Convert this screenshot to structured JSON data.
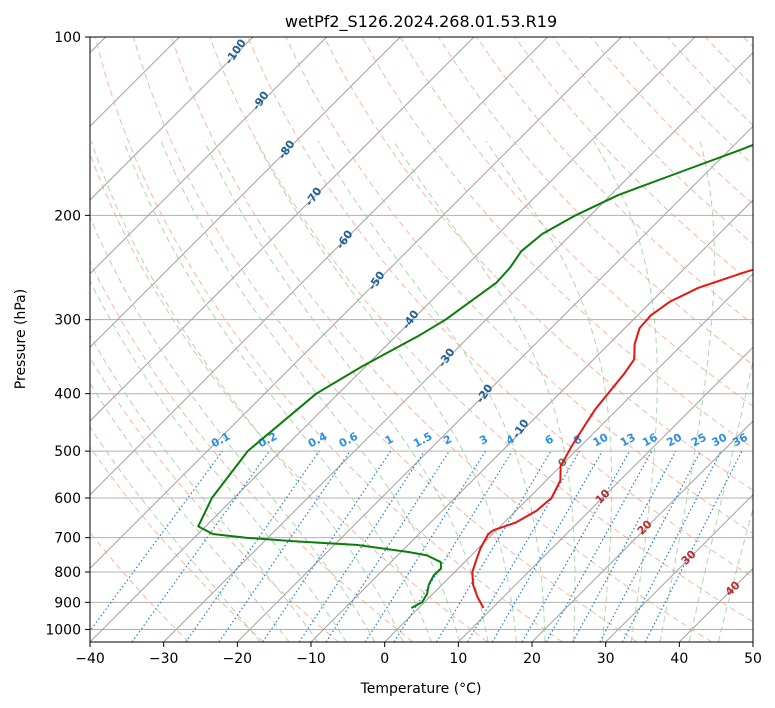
{
  "chart_data": {
    "type": "line",
    "title": "wetPf2_S126.2024.268.01.53.R19",
    "xlabel": "Temperature (°C)",
    "ylabel": "Pressure (hPa)",
    "xlim": [
      -40,
      50
    ],
    "ylim": [
      1050,
      100
    ],
    "y_scale": "log",
    "x_ticks": [
      -40,
      -30,
      -20,
      -10,
      0,
      10,
      20,
      30,
      40,
      50
    ],
    "x_tick_labels": [
      "−40",
      "−30",
      "−20",
      "−10",
      "0",
      "10",
      "20",
      "30",
      "40",
      "50"
    ],
    "y_ticks": [
      100,
      200,
      300,
      400,
      500,
      600,
      700,
      800,
      900,
      1000
    ],
    "y_tick_labels": [
      "100",
      "200",
      "300",
      "400",
      "500",
      "600",
      "700",
      "800",
      "900",
      "1000"
    ],
    "grid": true,
    "isotherm_skew": 1.0,
    "dry_adiabat_labels": [
      "-100",
      "-90",
      "-80",
      "-70",
      "-60",
      "-50",
      "-40",
      "-30",
      "-20",
      "-10"
    ],
    "moist_adiabat_labels": [
      "0",
      "10",
      "20",
      "30",
      "40"
    ],
    "mixing_ratio_labels": [
      "0.1",
      "0.2",
      "0.4",
      "0.6",
      "1",
      "1.5",
      "2",
      "3",
      "4",
      "6",
      "8",
      "10",
      "13",
      "16",
      "20",
      "25",
      "30",
      "36"
    ],
    "colors": {
      "temperature": "#e8150f",
      "dewpoint": "#0a7d0a",
      "isotherm": "#a0a0a0",
      "isobar": "#b0b0b0",
      "dry_adiabat": "#f5a080",
      "moist_adiabat": "#98cc98",
      "mixing_ratio": "#1e7ed8",
      "dry_label": "#1f5f99",
      "moist_label": "#c0282a",
      "mixing_label": "#2d8ee6",
      "zero_label": "#707070"
    },
    "series": [
      {
        "name": "Temperature",
        "key": "temperature",
        "points": [
          {
            "p": 920,
            "t": 8.8
          },
          {
            "p": 880,
            "t": 6.4
          },
          {
            "p": 840,
            "t": 4.2
          },
          {
            "p": 800,
            "t": 2.4
          },
          {
            "p": 760,
            "t": 1.2
          },
          {
            "p": 730,
            "t": 0.3
          },
          {
            "p": 690,
            "t": -0.6
          },
          {
            "p": 680,
            "t": -0.4
          },
          {
            "p": 660,
            "t": 1.6
          },
          {
            "p": 630,
            "t": 2.8
          },
          {
            "p": 600,
            "t": 3.1
          },
          {
            "p": 560,
            "t": 1.9
          },
          {
            "p": 530,
            "t": 0.0
          },
          {
            "p": 490,
            "t": -1.2
          },
          {
            "p": 450,
            "t": -2.3
          },
          {
            "p": 425,
            "t": -3.0
          },
          {
            "p": 400,
            "t": -3.4
          },
          {
            "p": 370,
            "t": -3.9
          },
          {
            "p": 350,
            "t": -4.5
          },
          {
            "p": 330,
            "t": -6.5
          },
          {
            "p": 310,
            "t": -8.0
          },
          {
            "p": 295,
            "t": -8.2
          },
          {
            "p": 280,
            "t": -7.5
          },
          {
            "p": 265,
            "t": -5.5
          },
          {
            "p": 250,
            "t": -1.5
          },
          {
            "p": 235,
            "t": 3.5
          },
          {
            "p": 215,
            "t": 8.4
          },
          {
            "p": 195,
            "t": 11.6
          },
          {
            "p": 175,
            "t": 13.7
          },
          {
            "p": 160,
            "t": 15.4
          },
          {
            "p": 145,
            "t": 18.3
          },
          {
            "p": 135,
            "t": 21.5
          },
          {
            "p": 125,
            "t": 23.8
          },
          {
            "p": 115,
            "t": 24.7
          },
          {
            "p": 107,
            "t": 25.0
          },
          {
            "p": 100,
            "t": 25.8
          }
        ]
      },
      {
        "name": "Dewpoint",
        "key": "dewpoint",
        "points": [
          {
            "p": 920,
            "t": -1.0
          },
          {
            "p": 900,
            "t": -0.3
          },
          {
            "p": 870,
            "t": -0.8
          },
          {
            "p": 840,
            "t": -1.8
          },
          {
            "p": 810,
            "t": -2.4
          },
          {
            "p": 790,
            "t": -2.3
          },
          {
            "p": 770,
            "t": -3.2
          },
          {
            "p": 750,
            "t": -6.0
          },
          {
            "p": 740,
            "t": -9.0
          },
          {
            "p": 720,
            "t": -17.0
          },
          {
            "p": 710,
            "t": -26.0
          },
          {
            "p": 700,
            "t": -33.0
          },
          {
            "p": 690,
            "t": -38.0
          },
          {
            "p": 670,
            "t": -41.0
          },
          {
            "p": 600,
            "t": -43.0
          },
          {
            "p": 500,
            "t": -44.5
          },
          {
            "p": 400,
            "t": -43.0
          },
          {
            "p": 360,
            "t": -40.5
          },
          {
            "p": 320,
            "t": -37.0
          },
          {
            "p": 300,
            "t": -35.5
          },
          {
            "p": 280,
            "t": -34.6
          },
          {
            "p": 260,
            "t": -33.6
          },
          {
            "p": 245,
            "t": -33.8
          },
          {
            "p": 230,
            "t": -34.5
          },
          {
            "p": 215,
            "t": -34.0
          },
          {
            "p": 200,
            "t": -32.0
          },
          {
            "p": 185,
            "t": -29.0
          },
          {
            "p": 170,
            "t": -24.0
          },
          {
            "p": 155,
            "t": -18.5
          },
          {
            "p": 140,
            "t": -13.0
          },
          {
            "p": 132,
            "t": -9.0
          },
          {
            "p": 128,
            "t": -5.0
          },
          {
            "p": 127,
            "t": 0.0
          },
          {
            "p": 124,
            "t": 5.0
          },
          {
            "p": 120,
            "t": 10.0
          },
          {
            "p": 115,
            "t": 14.0
          },
          {
            "p": 110,
            "t": 17.0
          },
          {
            "p": 105,
            "t": 18.5
          },
          {
            "p": 100,
            "t": 18.8
          }
        ]
      }
    ]
  }
}
